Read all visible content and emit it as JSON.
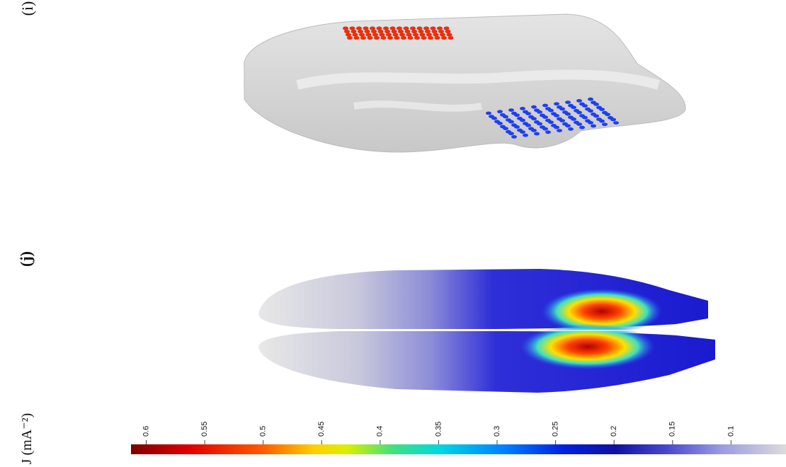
{
  "panels": [
    {
      "label": "(i)"
    },
    {
      "label": "(j)"
    }
  ],
  "colorbar": {
    "label": "J (mA⁻²)",
    "range": [
      0.613,
      0.053
    ],
    "ticks": [
      0.6,
      0.55,
      0.5,
      0.45,
      0.4,
      0.35,
      0.3,
      0.25,
      0.2,
      0.15,
      0.1
    ]
  }
}
